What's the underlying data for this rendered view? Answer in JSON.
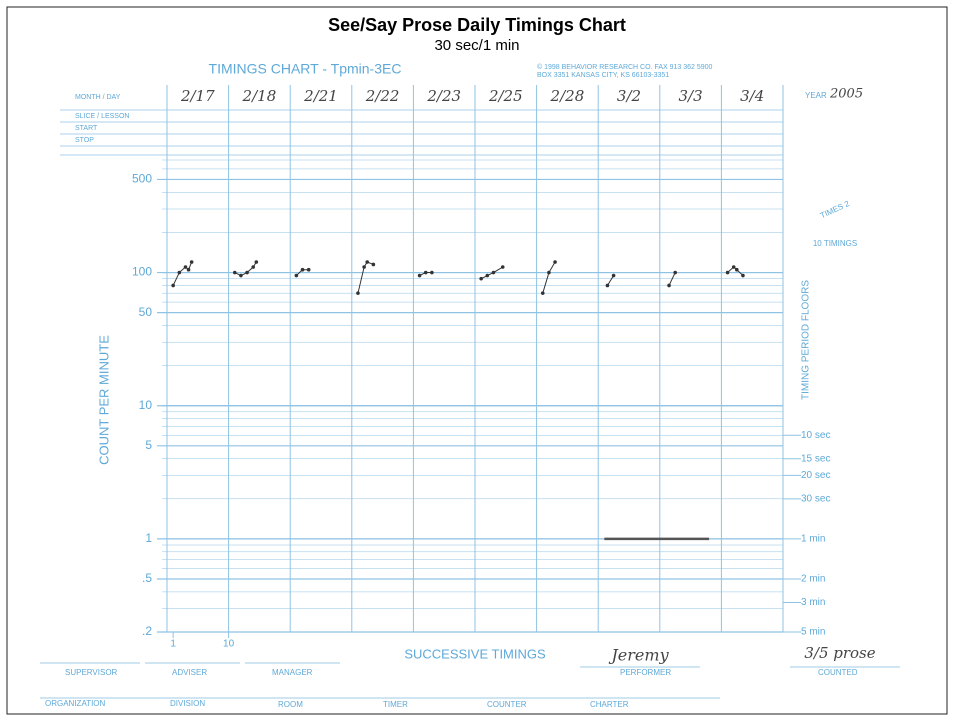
{
  "chart_data": {
    "type": "line",
    "title": "See/Say Prose Daily Timings Chart",
    "subtitle": "30 sec/1 min",
    "chart_name": "TIMINGS CHART - Tpmin-3EC",
    "copyright": [
      "© 1998 BEHAVIOR RESEARCH CO. FAX 913 362 5900",
      "BOX 3351 KANSAS CITY, KS 66103-3351"
    ],
    "header_rows": [
      "MONTH / DAY",
      "SLICE / LESSON",
      "START",
      "STOP"
    ],
    "year_label": "YEAR",
    "year": "2005",
    "y_label": "COUNT PER MINUTE",
    "y2_label": "TIMING PERIOD FLOORS",
    "x_label": "SUCCESSIVE TIMINGS",
    "side_notes": [
      "TIMES 2",
      "10 TIMINGS"
    ],
    "log_y": true,
    "ylim": [
      0.2,
      700
    ],
    "yticks": [
      500,
      100,
      50,
      10,
      5,
      1,
      {
        "value": 0.5,
        "label": ".5"
      },
      {
        "value": 0.2,
        "label": ".2"
      }
    ],
    "y2lim": [
      0.2,
      700
    ],
    "y2ticks": [
      {
        "value": 6,
        "label": "10 sec"
      },
      {
        "value": 4,
        "label": "15 sec"
      },
      {
        "value": 3,
        "label": "20 sec"
      },
      {
        "value": 2,
        "label": "30 sec"
      },
      {
        "value": 1,
        "label": "1 min"
      },
      {
        "value": 0.5,
        "label": "2 min"
      },
      {
        "value": 0.333,
        "label": "3 min"
      },
      {
        "value": 0.2,
        "label": "5 min"
      }
    ],
    "xlim": [
      0,
      100
    ],
    "xticks": [
      1,
      10
    ],
    "record_floor": {
      "value": 1,
      "from": 71,
      "to": 88
    },
    "color": "#333333",
    "series": [
      {
        "name": "2/17",
        "x": [
          1,
          2,
          3,
          3.5,
          4
        ],
        "values": [
          80,
          100,
          110,
          105,
          120
        ]
      },
      {
        "name": "2/18",
        "x": [
          11,
          12,
          13,
          14,
          14.5
        ],
        "values": [
          100,
          95,
          100,
          110,
          120
        ]
      },
      {
        "name": "2/21",
        "x": [
          21,
          22,
          23
        ],
        "values": [
          95,
          105,
          105
        ]
      },
      {
        "name": "2/22",
        "x": [
          31,
          32,
          32.5,
          33.5
        ],
        "values": [
          70,
          110,
          120,
          115
        ]
      },
      {
        "name": "2/23",
        "x": [
          41,
          42,
          43
        ],
        "values": [
          95,
          100,
          100
        ]
      },
      {
        "name": "2/25",
        "x": [
          51,
          52,
          53,
          54.5
        ],
        "values": [
          90,
          95,
          100,
          110
        ]
      },
      {
        "name": "2/28",
        "x": [
          61,
          62,
          63
        ],
        "values": [
          70,
          100,
          120
        ]
      },
      {
        "name": "3/2",
        "x": [
          71.5,
          72.5
        ],
        "values": [
          80,
          95
        ]
      },
      {
        "name": "3/3",
        "x": [
          81.5,
          82.5
        ],
        "values": [
          80,
          100
        ]
      },
      {
        "name": "3/4",
        "x": [
          91,
          92,
          92.5,
          93.5
        ],
        "values": [
          100,
          110,
          105,
          95
        ]
      }
    ],
    "footer": {
      "row1": [
        "SUPERVISOR",
        "ADVISER",
        "MANAGER"
      ],
      "performer_label": "PERFORMER",
      "performer": "Jeremy",
      "counted_label": "COUNTED",
      "counted": "3/5 prose",
      "row2": [
        "ORGANIZATION",
        "DIVISION",
        "ROOM",
        "TIMER",
        "COUNTER",
        "CHARTER"
      ]
    }
  }
}
